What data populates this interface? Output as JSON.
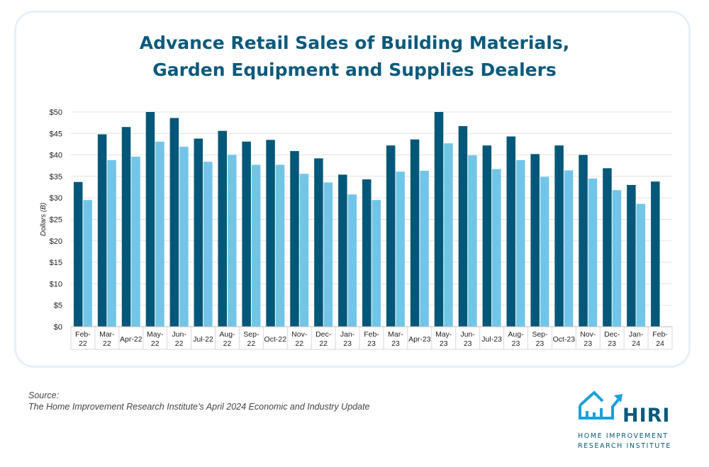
{
  "chart_data": {
    "type": "bar",
    "title": "Advance Retail Sales of Building Materials, Garden Equipment and Supplies Dealers",
    "title_lines": [
      "Advance Retail Sales of Building Materials,",
      "Garden Equipment and Supplies Dealers"
    ],
    "ylabel": "Dollars (B)",
    "xlabel": "",
    "ylim": [
      0,
      50
    ],
    "yticks": [
      "$0",
      "$5",
      "$10",
      "$15",
      "$20",
      "$25",
      "$30",
      "$35",
      "$40",
      "$45",
      "$50"
    ],
    "grid": true,
    "categories": [
      "Feb-22",
      "Mar-22",
      "Apr-22",
      "May-22",
      "Jun-22",
      "Jul-22",
      "Aug-22",
      "Sep-22",
      "Oct-22",
      "Nov-22",
      "Dec-22",
      "Jan-23",
      "Feb-23",
      "Mar-23",
      "Apr-23",
      "May-23",
      "Jun-23",
      "Jul-23",
      "Aug-23",
      "Sep-23",
      "Oct-23",
      "Nov-23",
      "Dec-23",
      "Jan-24",
      "Feb-24"
    ],
    "category_labels": [
      [
        "Feb-",
        "22"
      ],
      [
        "Mar-",
        "22"
      ],
      [
        "Apr-22"
      ],
      [
        "May-",
        "22"
      ],
      [
        "Jun-",
        "22"
      ],
      [
        "Jul-22"
      ],
      [
        "Aug-",
        "22"
      ],
      [
        "Sep-",
        "22"
      ],
      [
        "Oct-22"
      ],
      [
        "Nov-",
        "22"
      ],
      [
        "Dec-",
        "22"
      ],
      [
        "Jan-",
        "23"
      ],
      [
        "Feb-",
        "23"
      ],
      [
        "Mar-",
        "23"
      ],
      [
        "Apr-23"
      ],
      [
        "May-",
        "23"
      ],
      [
        "Jun-",
        "23"
      ],
      [
        "Jul-23"
      ],
      [
        "Aug-",
        "23"
      ],
      [
        "Sep-",
        "23"
      ],
      [
        "Oct-23"
      ],
      [
        "Nov-",
        "23"
      ],
      [
        "Dec-",
        "23"
      ],
      [
        "Jan-",
        "24"
      ],
      [
        "Feb-",
        "24"
      ]
    ],
    "series": [
      {
        "values": [
          33.7,
          44.8,
          46.5,
          50.0,
          48.6,
          43.8,
          45.6,
          43.1,
          43.5,
          40.9,
          39.2,
          35.4,
          34.3,
          42.2,
          43.6,
          50.0,
          46.7,
          42.2,
          44.3,
          40.2,
          42.2,
          40.0,
          36.9,
          33.0,
          33.8
        ],
        "color": "#035779"
      },
      {
        "values": [
          29.5,
          38.8,
          39.6,
          43.1,
          41.9,
          38.4,
          40.0,
          37.7,
          37.7,
          35.6,
          33.6,
          30.8,
          29.5,
          36.1,
          36.3,
          42.7,
          39.9,
          36.7,
          38.8,
          34.9,
          36.4,
          34.5,
          31.8,
          28.6,
          null
        ],
        "color": "#72c5e8"
      }
    ]
  },
  "source": {
    "label": "Source:",
    "text": "The Home Improvement Research Institute’s April 2024 Economic and Industry Update"
  },
  "logo": {
    "name": "HIRI",
    "line1": "HOME IMPROVEMENT",
    "line2": "RESEARCH INSTITUTE",
    "icon": "house-chart-arrow-icon",
    "color": "#1aa0dc"
  }
}
